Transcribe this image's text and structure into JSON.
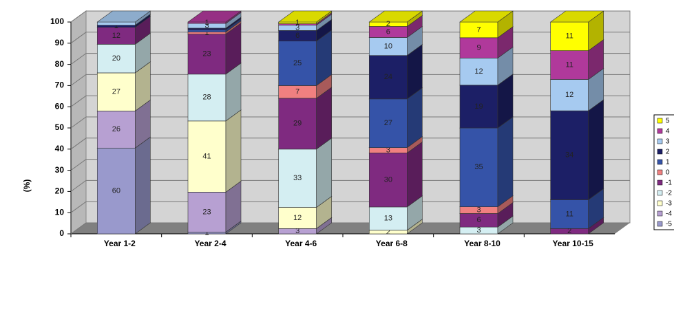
{
  "chart_data": {
    "type": "bar3d-stacked",
    "y_label": "(%)",
    "categories": [
      "Year 1-2",
      "Year 2-4",
      "Year 4-6",
      "Year 6-8",
      "Year 8-10",
      "Year 10-15"
    ],
    "ylim": [
      0,
      100
    ],
    "yticks": [
      0,
      10,
      20,
      30,
      40,
      50,
      60,
      70,
      80,
      90,
      100
    ],
    "grid": true,
    "legend": "right",
    "series": [
      {
        "name": "-5",
        "color": "#9999cc",
        "values": [
          40.5,
          0.8,
          0,
          0,
          0,
          0
        ],
        "counts": [
          60,
          1,
          null,
          null,
          null,
          null
        ]
      },
      {
        "name": "-4",
        "color": "#b7a0d2",
        "values": [
          17.5,
          18.9,
          2.5,
          0,
          0,
          0
        ],
        "counts": [
          26,
          23,
          3,
          null,
          null,
          null
        ]
      },
      {
        "name": "-3",
        "color": "#ffffcc",
        "values": [
          18,
          33.6,
          10,
          1.7,
          0,
          0
        ],
        "counts": [
          27,
          41,
          12,
          2,
          null,
          null
        ]
      },
      {
        "name": "-2",
        "color": "#d4eef2",
        "values": [
          13.5,
          22.1,
          27.5,
          11,
          3.2,
          0
        ],
        "counts": [
          20,
          28,
          33,
          13,
          3,
          null
        ]
      },
      {
        "name": "-1",
        "color": "#7f2a80",
        "values": [
          8,
          18.9,
          24,
          25.5,
          6.4,
          2.5
        ],
        "counts": [
          12,
          23,
          29,
          30,
          6,
          2
        ]
      },
      {
        "name": "0",
        "color": "#f08080",
        "values": [
          0,
          1,
          6,
          2.5,
          3.2,
          0
        ],
        "counts": [
          null,
          1,
          7,
          3,
          3,
          null
        ]
      },
      {
        "name": "1",
        "color": "#3553a8",
        "values": [
          0,
          1,
          21,
          23,
          37.2,
          13.6
        ],
        "counts": [
          null,
          null,
          25,
          27,
          35,
          11
        ]
      },
      {
        "name": "2",
        "color": "#1c1f66",
        "values": [
          1,
          0.8,
          5,
          20.5,
          20.2,
          42
        ],
        "counts": [
          1,
          null,
          6,
          24,
          19,
          34
        ]
      },
      {
        "name": "3",
        "color": "#a6caf0",
        "values": [
          1.5,
          2.2,
          2.5,
          8.5,
          12.8,
          14.8
        ],
        "counts": [
          null,
          3,
          3,
          10,
          12,
          12
        ]
      },
      {
        "name": "4",
        "color": "#b0399b",
        "values": [
          0,
          0.7,
          0.7,
          5.2,
          9.6,
          13.6
        ],
        "counts": [
          null,
          1,
          null,
          6,
          9,
          11
        ]
      },
      {
        "name": "5",
        "color": "#ffff00",
        "values": [
          0,
          0,
          0.8,
          2.1,
          7.4,
          13.5
        ],
        "counts": [
          null,
          null,
          1,
          2,
          7,
          11
        ]
      }
    ]
  }
}
